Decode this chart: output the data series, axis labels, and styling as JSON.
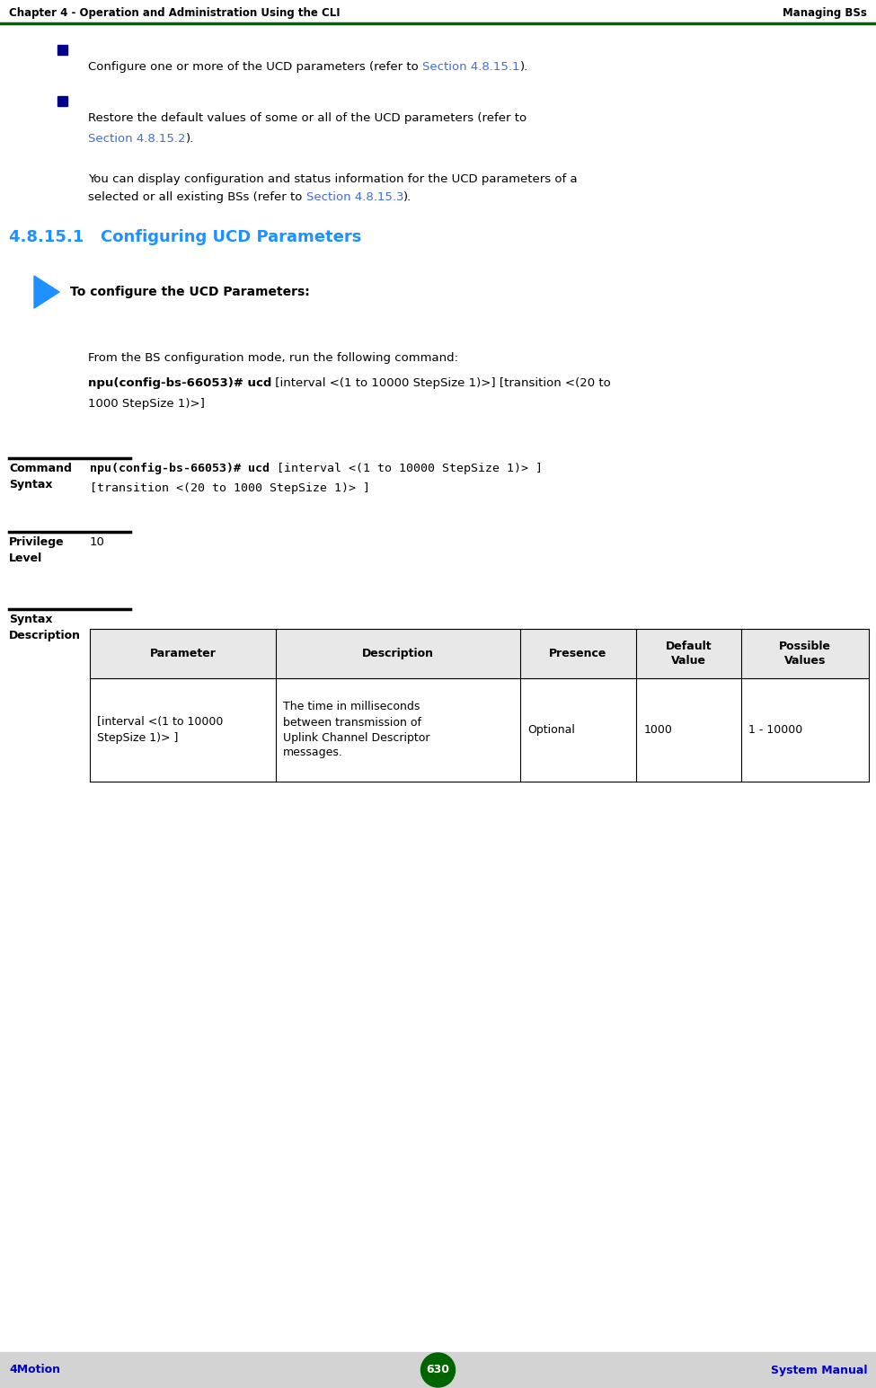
{
  "header_left": "Chapter 4 - Operation and Administration Using the CLI",
  "header_right": "Managing BSs",
  "header_line_color": "#006400",
  "footer_left": "4Motion",
  "footer_center": "630",
  "footer_right": "System Manual",
  "footer_circle_color": "#006400",
  "footer_text_color": "#0000CD",
  "page_bg": "#ffffff",
  "bullet_color": "#00008B",
  "link_color": "#4169E1",
  "section_title": "4.8.15.1   Configuring UCD Parameters",
  "section_title_color": "#1E90FF",
  "arrow_color": "#1E90FF",
  "arrow_label": "To configure the UCD Parameters:",
  "from_bs_text": "From the BS configuration mode, run the following command:",
  "cmd_bold": "npu(config-bs-66053)# ucd",
  "cmd_rest1": " [interval <(1 to 10000 StepSize 1)>] [transition <(20 to",
  "cmd_rest2": "1000 StepSize 1)>]",
  "label_cmd_syntax": "Command\nSyntax",
  "cs_bold": "npu(config-bs-66053)# ucd",
  "cs_rest1": " [interval <(1 to 10000 StepSize 1)> ]",
  "cs_line2": "[transition <(20 to 1000 StepSize 1)> ]",
  "label_privilege": "Privilege\nLevel",
  "privilege_value": "10",
  "label_syntax_desc": "Syntax\nDescription",
  "tbl_headers": [
    "Parameter",
    "Description",
    "Presence",
    "Default\nValue",
    "Possible\nValues"
  ],
  "tbl_row_col0": "[interval <(1 to 10000\nStepSize 1)> ]",
  "tbl_row_col1": "The time in milliseconds\nbetween transmission of\nUplink Channel Descriptor\nmessages.",
  "tbl_row_col2": "Optional",
  "tbl_row_col3": "1000",
  "tbl_row_col4": "1 - 10000",
  "divider_color": "#000000",
  "bullet1_pre": "Configure one or more of the UCD parameters (refer to ",
  "bullet1_link": "Section 4.8.15.1",
  "bullet1_post": ").",
  "bullet2_pre": "Restore the default values of some or all of the UCD parameters (refer to",
  "bullet2_link": "Section 4.8.15.2",
  "bullet2_post": ").",
  "para_pre": "You can display configuration and status information for the UCD parameters of a",
  "para_pre2": "selected or all existing BSs (refer to ",
  "para_link": "Section 4.8.15.3",
  "para_post": ")."
}
